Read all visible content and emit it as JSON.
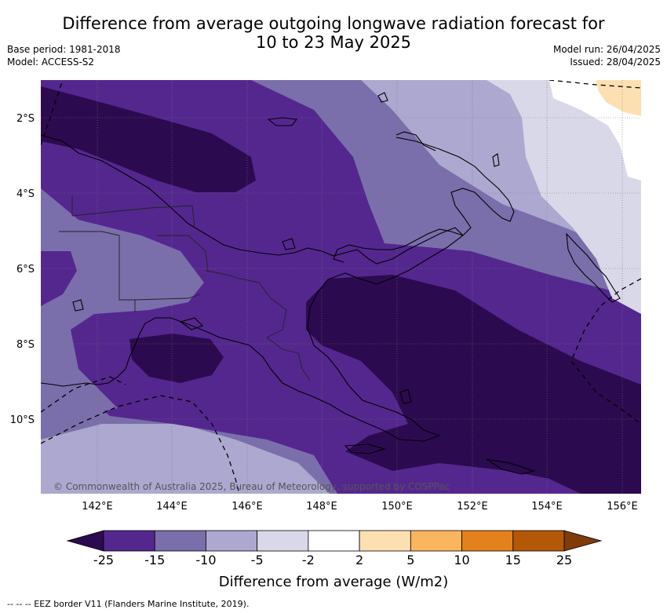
{
  "title_line1": "Difference from average outgoing longwave radiation forecast for",
  "title_line2": "10 to 23 May 2025",
  "base_period": "Base period: 1981-2018",
  "model": "Model: ACCESS-S2",
  "model_run": "Model run: 26/04/2025",
  "issued": "Issued: 28/04/2025",
  "copyright": "© Commonwealth of Australia 2025, Bureau of Meteorology, supported by COSPPac",
  "lat_labels": [
    "2°S",
    "4°S",
    "6°S",
    "8°S",
    "10°S"
  ],
  "lon_labels": [
    "142°E",
    "144°E",
    "146°E",
    "148°E",
    "150°E",
    "152°E",
    "154°E",
    "156°E"
  ],
  "colorbar": {
    "ticks": [
      "-25",
      "-15",
      "-10",
      "-5",
      "-2",
      "2",
      "5",
      "10",
      "15",
      "25"
    ],
    "colors": [
      "#2c0a4f",
      "#54278f",
      "#7a6fab",
      "#aca8cf",
      "#d8d8e8",
      "#ffffff",
      "#fde0b2",
      "#fbb55f",
      "#e3821c",
      "#b35806",
      "#7f3b08"
    ],
    "title": "Difference from average (W/m2)"
  },
  "footer": "-- -- -- EEZ border V11 (Flanders Marine Institute, 2019)."
}
